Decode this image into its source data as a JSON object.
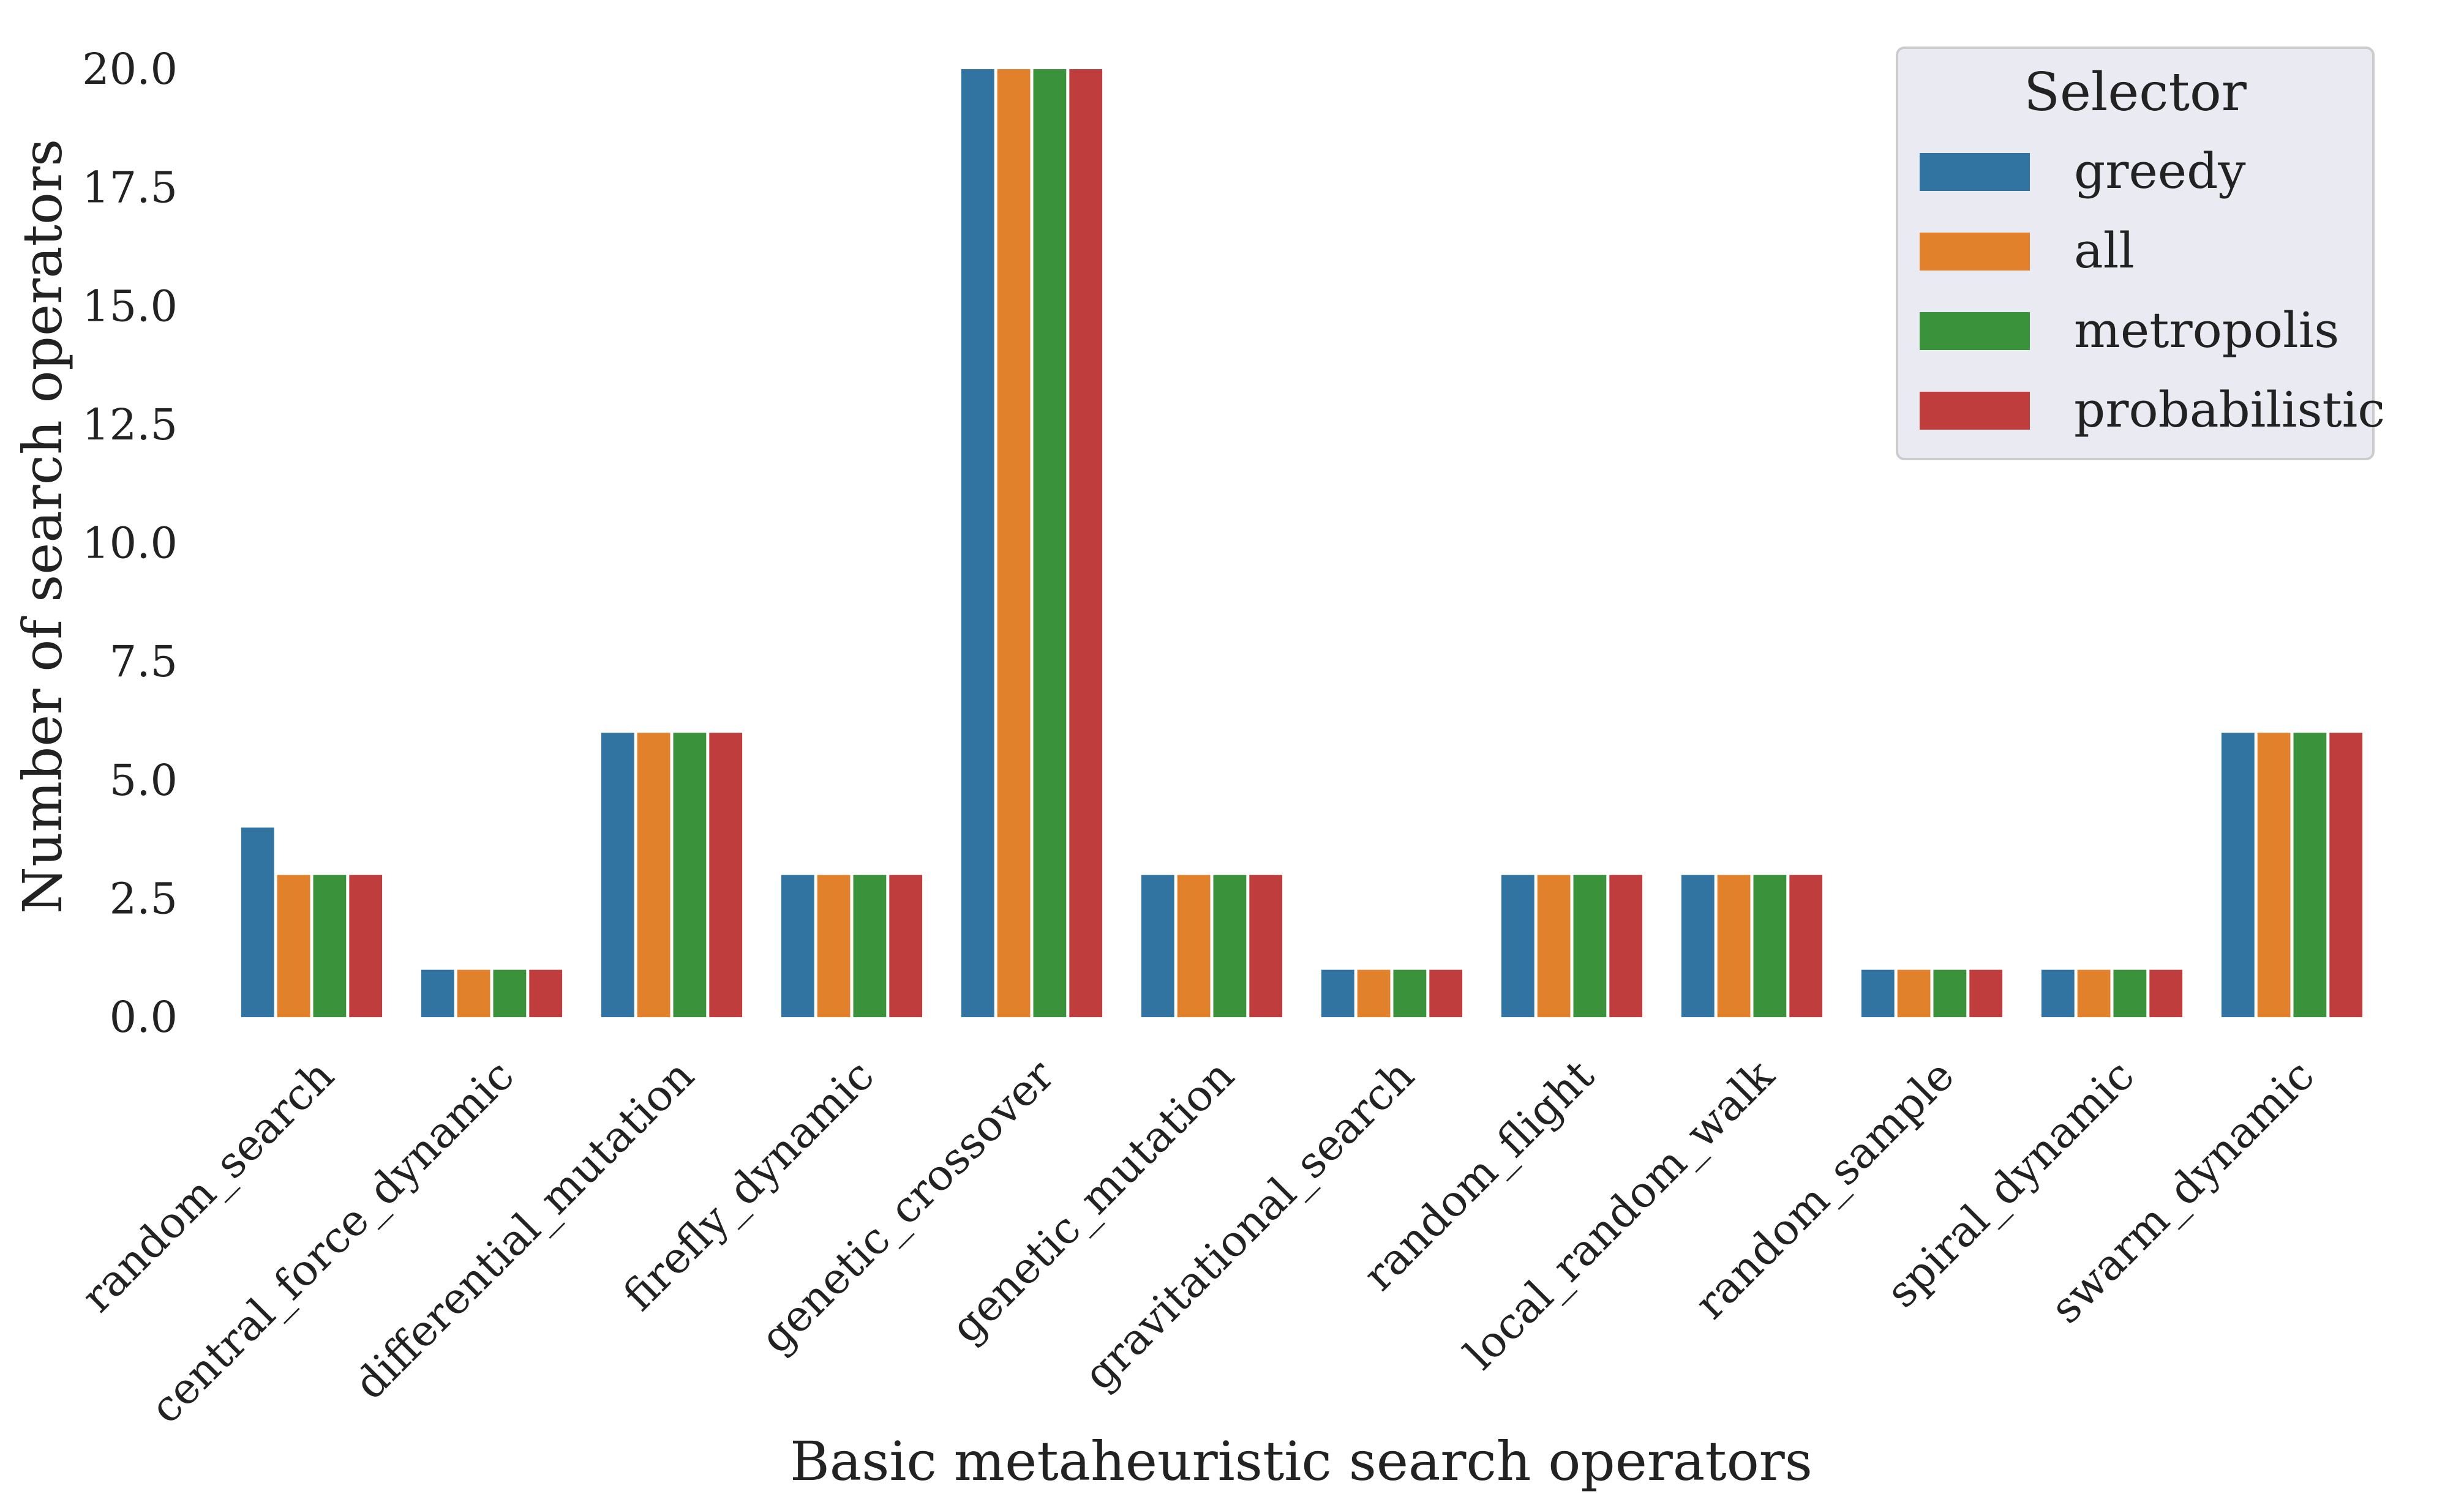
{
  "chart_data": {
    "type": "bar",
    "title": "",
    "xlabel": "Basic metaheuristic search operators",
    "ylabel": "Number of search operators",
    "ylim": [
      0,
      20
    ],
    "yticks": [
      "0.0",
      "2.5",
      "5.0",
      "7.5",
      "10.0",
      "12.5",
      "15.0",
      "17.5",
      "20.0"
    ],
    "categories": [
      "random_search",
      "central_force_dynamic",
      "differential_mutation",
      "firefly_dynamic",
      "genetic_crossover",
      "genetic_mutation",
      "gravitational_search",
      "random_flight",
      "local_random_walk",
      "random_sample",
      "spiral_dynamic",
      "swarm_dynamic"
    ],
    "series": [
      {
        "name": "greedy",
        "color": "#3274a1",
        "values": [
          4,
          1,
          6,
          3,
          20,
          3,
          1,
          3,
          3,
          1,
          1,
          6
        ]
      },
      {
        "name": "all",
        "color": "#e1812c",
        "values": [
          3,
          1,
          6,
          3,
          20,
          3,
          1,
          3,
          3,
          1,
          1,
          6
        ]
      },
      {
        "name": "metropolis",
        "color": "#3a923a",
        "values": [
          3,
          1,
          6,
          3,
          20,
          3,
          1,
          3,
          3,
          1,
          1,
          6
        ]
      },
      {
        "name": "probabilistic",
        "color": "#c03d3e",
        "values": [
          3,
          1,
          6,
          3,
          20,
          3,
          1,
          3,
          3,
          1,
          1,
          6
        ]
      }
    ],
    "legend": {
      "title": "Selector",
      "placement": "top-right"
    },
    "grid": false
  }
}
